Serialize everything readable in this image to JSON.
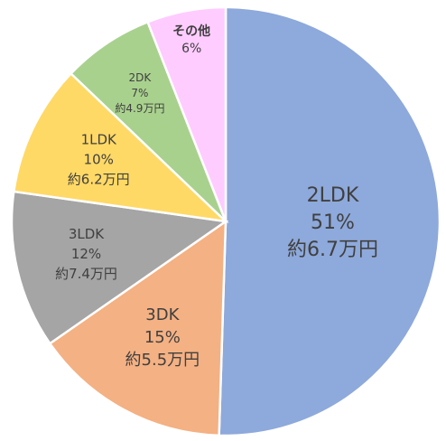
{
  "chart_data": {
    "type": "pie",
    "title": "",
    "slices": [
      {
        "category": "2LDK",
        "percent_label": "51%",
        "price_label": "約6.7万円",
        "value": 51,
        "color": "#8EA9DB"
      },
      {
        "category": "3DK",
        "percent_label": "15%",
        "price_label": "約5.5万円",
        "value": 15,
        "color": "#F4B183"
      },
      {
        "category": "3LDK",
        "percent_label": "12%",
        "price_label": "約7.4万円",
        "value": 12,
        "color": "#A5A5A5"
      },
      {
        "category": "1LDK",
        "percent_label": "10%",
        "price_label": "約6.2万円",
        "value": 10,
        "color": "#FFD966"
      },
      {
        "category": "2DK",
        "percent_label": "7%",
        "price_label": "約4.9万円",
        "value": 7,
        "color": "#A9D18E"
      },
      {
        "category": "その他",
        "percent_label": "6%",
        "price_label": "",
        "value": 6,
        "color": "#FFCCFF"
      }
    ]
  }
}
